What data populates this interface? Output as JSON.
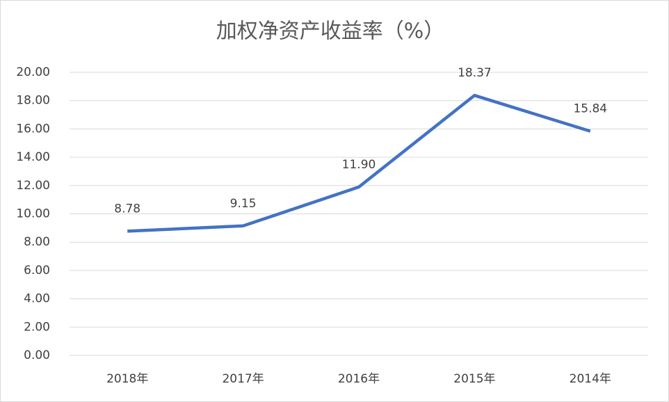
{
  "chart_data": {
    "type": "line",
    "title": "加权净资产收益率（%）",
    "categories": [
      "2018年",
      "2017年",
      "2016年",
      "2015年",
      "2014年"
    ],
    "values": [
      8.78,
      9.15,
      11.9,
      18.37,
      15.84
    ],
    "value_labels": [
      "8.78",
      "9.15",
      "11.90",
      "18.37",
      "15.84"
    ],
    "color": "#4472c4",
    "ylim": [
      0,
      20
    ],
    "yticks": [
      {
        "value": 0,
        "label": "0.00"
      },
      {
        "value": 2,
        "label": "2.00"
      },
      {
        "value": 4,
        "label": "4.00"
      },
      {
        "value": 6,
        "label": "6.00"
      },
      {
        "value": 8,
        "label": "8.00"
      },
      {
        "value": 10,
        "label": "10.00"
      },
      {
        "value": 12,
        "label": "12.00"
      },
      {
        "value": 14,
        "label": "14.00"
      },
      {
        "value": 16,
        "label": "16.00"
      },
      {
        "value": 18,
        "label": "18.00"
      },
      {
        "value": 20,
        "label": "20.00"
      }
    ],
    "grid": true
  }
}
